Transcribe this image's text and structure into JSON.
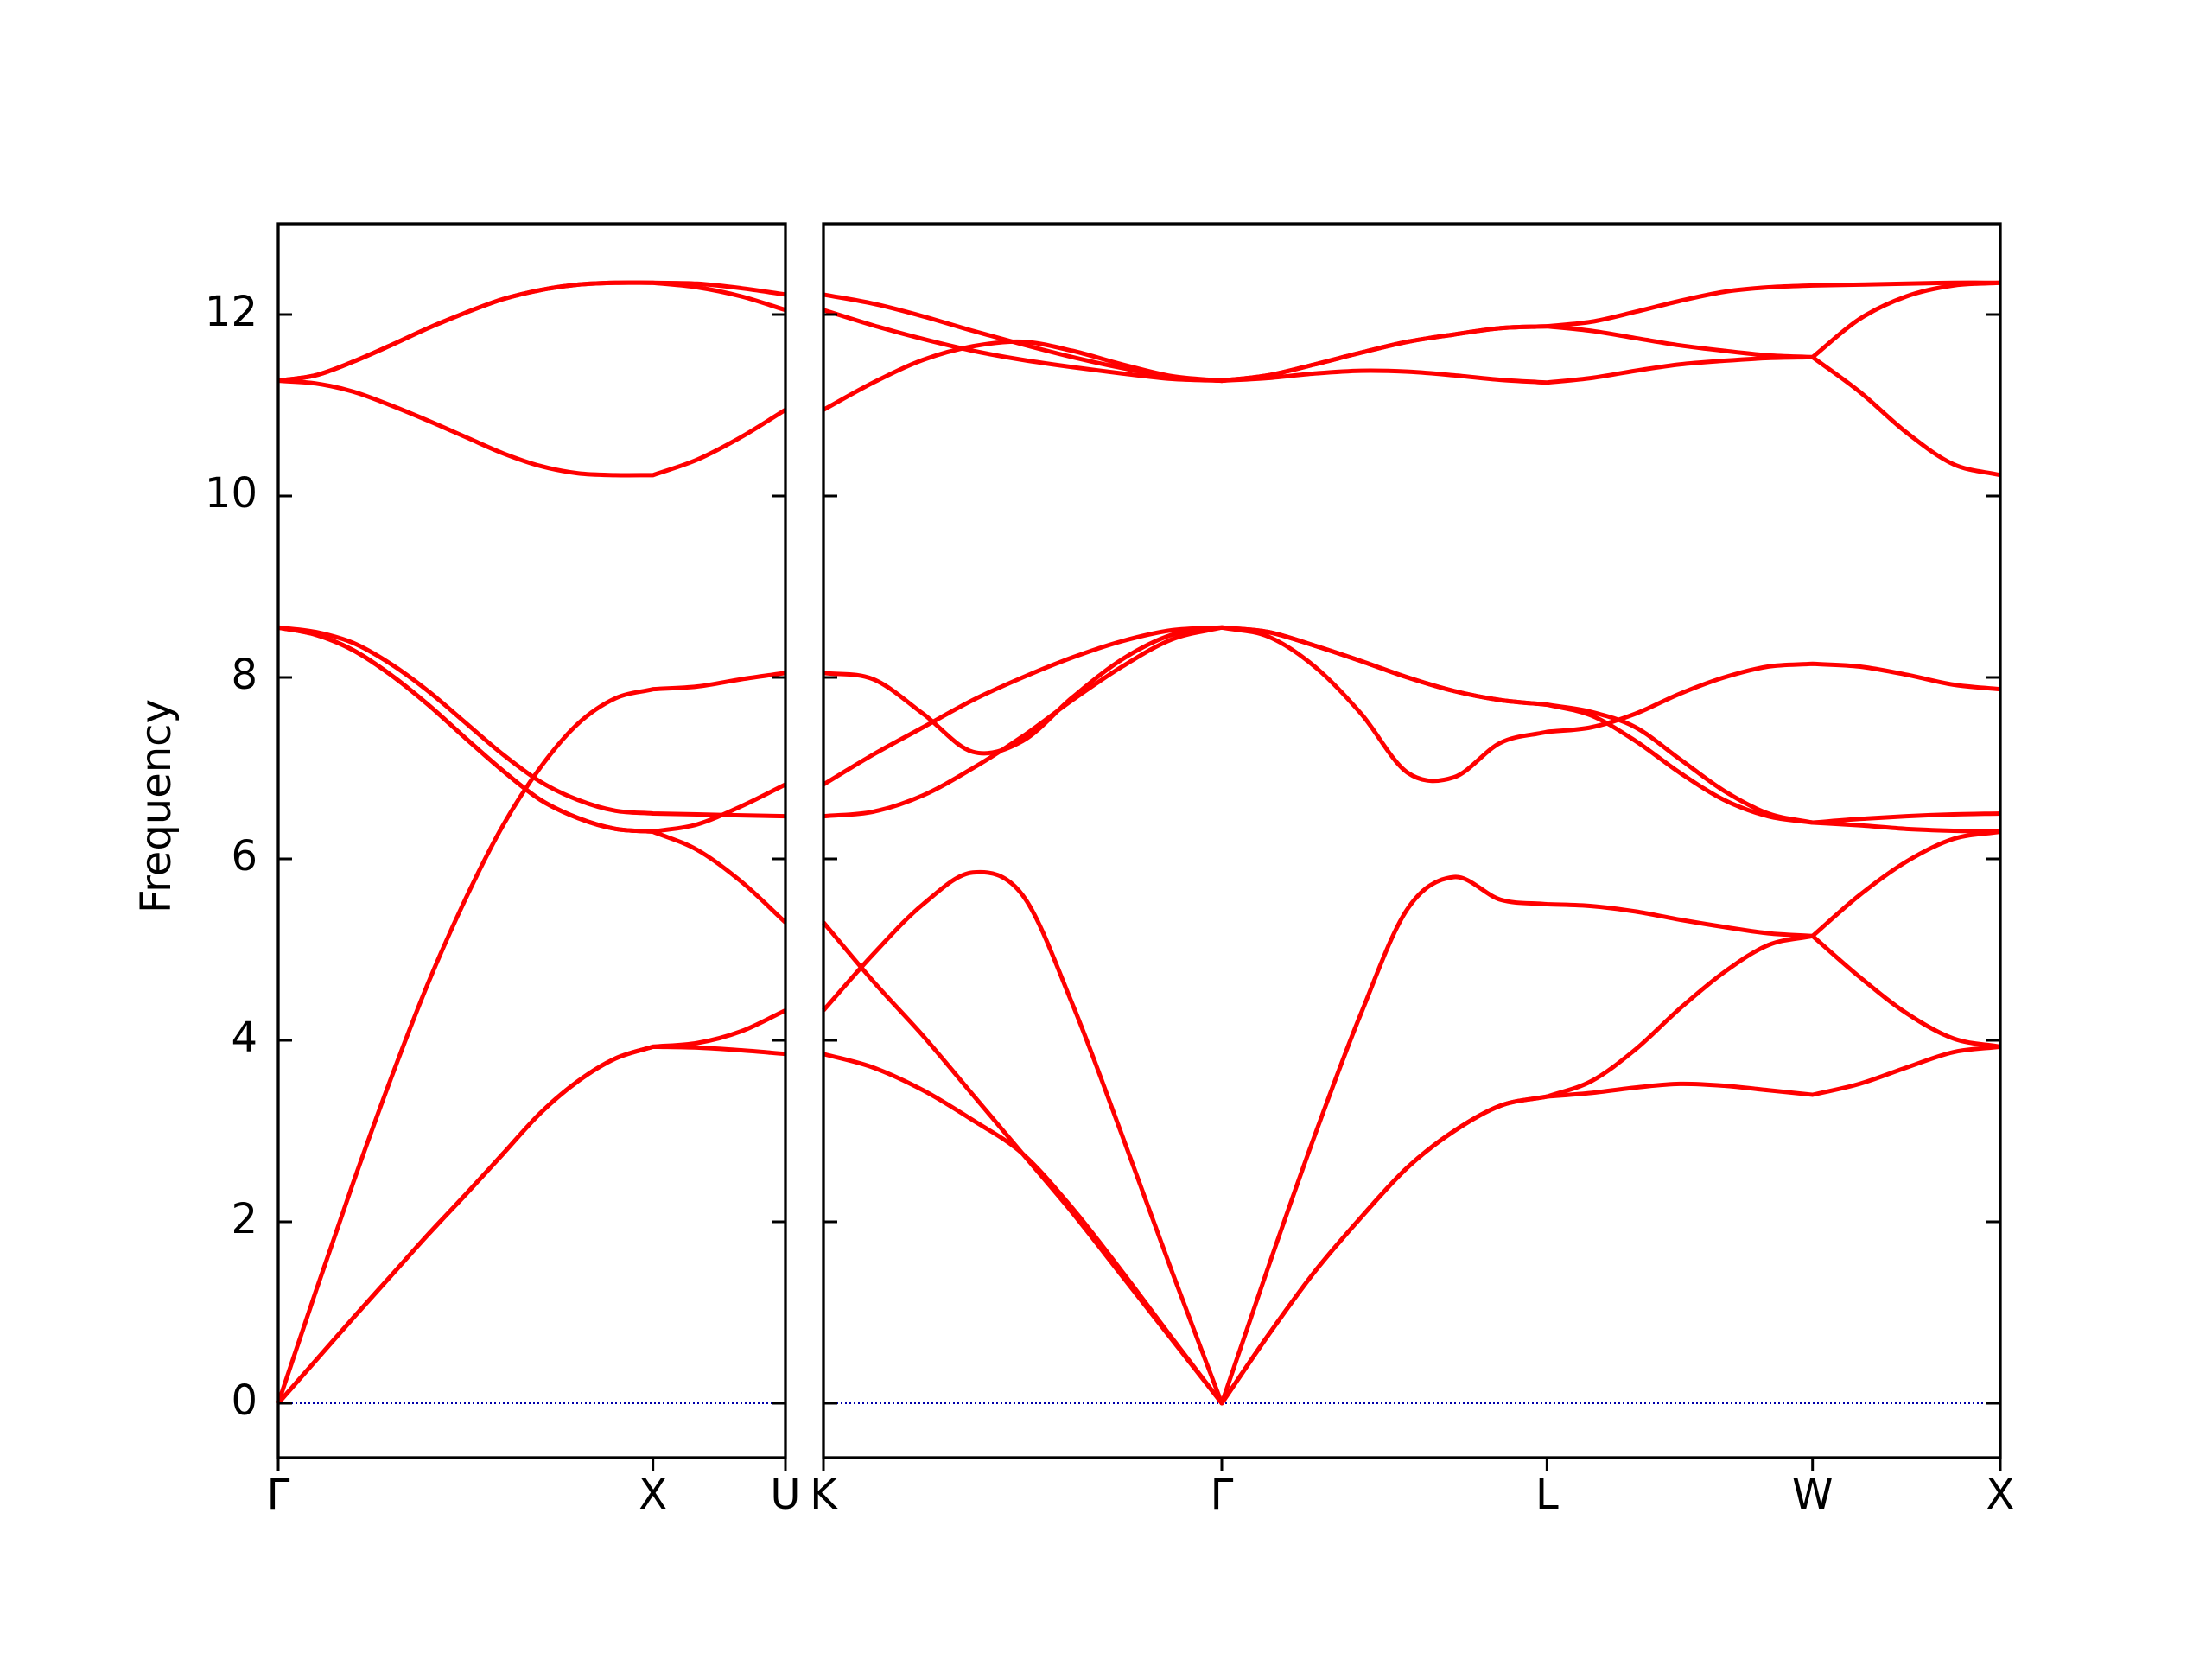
{
  "chart_data": [
    {
      "type": "line",
      "ylabel": "Frequency",
      "color": "#ff0000",
      "hline": 0,
      "hline_color": "#0000aa",
      "ytick_labels": true,
      "xlim": [
        0,
        1.3536
      ],
      "ylim": [
        -0.6,
        13
      ],
      "xticks": [
        {
          "value": 0,
          "label": "Γ"
        },
        {
          "value": 1,
          "label": "X"
        },
        {
          "value": 1.3536,
          "label": "U"
        }
      ],
      "yticks": [
        0,
        2,
        4,
        6,
        8,
        10,
        12
      ],
      "x": [
        0,
        0.1,
        0.2,
        0.3,
        0.4,
        0.5,
        0.6,
        0.7,
        0.8,
        0.9,
        1.0,
        1.1179,
        1.2357,
        1.3536
      ],
      "series": [
        {
          "values": [
            0,
            0.47,
            0.94,
            1.4,
            1.86,
            2.3,
            2.75,
            3.2,
            3.55,
            3.8,
            3.93,
            3.92,
            3.89,
            3.85
          ]
        },
        {
          "values": [
            0,
            0.47,
            0.94,
            1.4,
            1.86,
            2.3,
            2.75,
            3.2,
            3.55,
            3.8,
            3.93,
            3.97,
            4.1,
            4.33
          ]
        },
        {
          "values": [
            0,
            1.23,
            2.43,
            3.57,
            4.63,
            5.56,
            6.37,
            7.01,
            7.49,
            7.77,
            7.87,
            7.9,
            7.98,
            8.05
          ]
        },
        {
          "values": [
            8.55,
            8.5,
            8.38,
            8.15,
            7.85,
            7.5,
            7.15,
            6.85,
            6.65,
            6.53,
            6.5,
            6.49,
            6.48,
            6.47
          ]
        },
        {
          "values": [
            8.55,
            8.47,
            8.3,
            8.03,
            7.7,
            7.33,
            6.97,
            6.65,
            6.45,
            6.33,
            6.3,
            6.1,
            5.75,
            5.3
          ]
        },
        {
          "values": [
            8.55,
            8.47,
            8.3,
            8.03,
            7.7,
            7.33,
            6.97,
            6.65,
            6.45,
            6.33,
            6.3,
            6.38,
            6.58,
            6.82
          ]
        },
        {
          "values": [
            11.27,
            11.33,
            11.48,
            11.66,
            11.85,
            12.02,
            12.17,
            12.27,
            12.33,
            12.35,
            12.35,
            12.34,
            12.29,
            12.22
          ]
        },
        {
          "values": [
            11.27,
            11.33,
            11.48,
            11.66,
            11.85,
            12.02,
            12.17,
            12.27,
            12.33,
            12.35,
            12.35,
            12.3,
            12.2,
            12.05
          ]
        },
        {
          "values": [
            11.27,
            11.24,
            11.15,
            11.0,
            10.83,
            10.65,
            10.47,
            10.33,
            10.25,
            10.23,
            10.23,
            10.4,
            10.65,
            10.95
          ]
        }
      ]
    },
    {
      "type": "line",
      "color": "#ff0000",
      "hline": 0,
      "hline_color": "#0000aa",
      "ytick_labels": false,
      "xlim": [
        0,
        3.1338
      ],
      "ylim": [
        -0.6,
        13
      ],
      "xticks": [
        {
          "value": 0,
          "label": "K"
        },
        {
          "value": 1.0607,
          "label": "Γ"
        },
        {
          "value": 1.9267,
          "label": "L"
        },
        {
          "value": 2.6338,
          "label": "W"
        },
        {
          "value": 3.1338,
          "label": "X"
        }
      ],
      "yticks": [
        0,
        2,
        4,
        6,
        8,
        10,
        12
      ],
      "x": [
        0,
        0.1326,
        0.2652,
        0.3978,
        0.5303,
        0.6629,
        0.7955,
        0.9281,
        1.0607,
        1.1844,
        1.3081,
        1.4318,
        1.5555,
        1.6792,
        1.8029,
        1.9267,
        2.0446,
        2.1624,
        2.2803,
        2.3981,
        2.516,
        2.6338,
        2.7588,
        2.8838,
        3.0088,
        3.1338
      ],
      "series": [
        {
          "values": [
            3.85,
            3.7,
            3.45,
            3.12,
            2.75,
            2.15,
            1.45,
            0.72,
            0,
            0.75,
            1.45,
            2.05,
            2.6,
            3.0,
            3.28,
            3.38,
            3.42,
            3.48,
            3.52,
            3.5,
            3.45,
            3.4,
            3.52,
            3.7,
            3.87,
            3.93
          ]
        },
        {
          "values": [
            5.3,
            4.65,
            4.05,
            3.4,
            2.75,
            2.1,
            1.4,
            0.7,
            0,
            0.75,
            1.45,
            2.05,
            2.6,
            3.0,
            3.28,
            3.38,
            3.55,
            3.9,
            4.35,
            4.75,
            5.05,
            5.15,
            4.7,
            4.3,
            4.02,
            3.93
          ]
        },
        {
          "values": [
            4.33,
            4.95,
            5.5,
            5.85,
            5.6,
            4.4,
            2.95,
            1.45,
            0,
            1.5,
            2.95,
            4.3,
            5.45,
            5.8,
            5.55,
            5.5,
            5.48,
            5.42,
            5.33,
            5.25,
            5.18,
            5.15,
            5.6,
            5.97,
            6.22,
            6.3
          ]
        },
        {
          "values": [
            6.47,
            6.52,
            6.7,
            7.0,
            7.35,
            7.75,
            8.12,
            8.42,
            8.55,
            8.45,
            8.12,
            7.6,
            6.95,
            6.9,
            7.28,
            7.4,
            7.45,
            7.6,
            7.82,
            8.0,
            8.12,
            8.15,
            8.12,
            8.03,
            7.92,
            7.87
          ]
        },
        {
          "values": [
            6.82,
            7.15,
            7.45,
            7.75,
            8.0,
            8.22,
            8.4,
            8.52,
            8.55,
            8.5,
            8.35,
            8.18,
            8.0,
            7.85,
            7.75,
            7.7,
            7.62,
            7.45,
            7.1,
            6.75,
            6.5,
            6.4,
            6.37,
            6.33,
            6.31,
            6.3
          ]
        },
        {
          "values": [
            8.05,
            7.98,
            7.6,
            7.18,
            7.3,
            7.78,
            8.2,
            8.47,
            8.55,
            8.5,
            8.35,
            8.18,
            8.0,
            7.85,
            7.75,
            7.7,
            7.58,
            7.3,
            6.95,
            6.65,
            6.47,
            6.4,
            6.44,
            6.47,
            6.49,
            6.5
          ]
        },
        {
          "values": [
            10.95,
            11.25,
            11.5,
            11.65,
            11.7,
            11.6,
            11.45,
            11.32,
            11.27,
            11.3,
            11.35,
            11.38,
            11.37,
            11.33,
            11.28,
            11.25,
            11.3,
            11.38,
            11.45,
            11.49,
            11.52,
            11.53,
            11.15,
            10.7,
            10.35,
            10.23
          ]
        },
        {
          "values": [
            12.05,
            11.88,
            11.73,
            11.6,
            11.5,
            11.42,
            11.35,
            11.29,
            11.27,
            11.33,
            11.45,
            11.58,
            11.7,
            11.78,
            11.85,
            11.87,
            11.82,
            11.74,
            11.66,
            11.6,
            11.55,
            11.53,
            11.95,
            12.2,
            12.32,
            12.35
          ]
        },
        {
          "values": [
            12.22,
            12.12,
            11.98,
            11.82,
            11.67,
            11.53,
            11.41,
            11.31,
            11.27,
            11.33,
            11.45,
            11.58,
            11.7,
            11.78,
            11.85,
            11.87,
            11.92,
            12.03,
            12.15,
            12.25,
            12.3,
            12.32,
            12.33,
            12.34,
            12.35,
            12.35
          ]
        }
      ]
    }
  ]
}
